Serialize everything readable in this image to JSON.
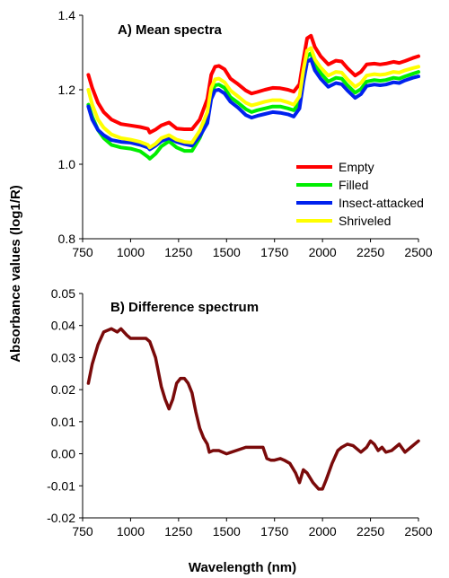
{
  "shared": {
    "ylabel": "Absorbance values (log1/R)",
    "xlabel": "Wavelength (nm)"
  },
  "chart_data": [
    {
      "type": "line",
      "title": "A) Mean spectra",
      "xlim": [
        750,
        2500
      ],
      "ylim": [
        0.8,
        1.4
      ],
      "x_ticks": [
        "750",
        "1000",
        "1250",
        "1500",
        "1750",
        "2000",
        "2250",
        "2500"
      ],
      "y_ticks": [
        "0.8",
        "1.0",
        "1.2",
        "1.4"
      ],
      "legend_position": "bottom-right",
      "series": [
        {
          "name": "Empty",
          "color": "#ff0000",
          "x": [
            780,
            800,
            830,
            860,
            900,
            950,
            1000,
            1050,
            1090,
            1100,
            1130,
            1160,
            1200,
            1240,
            1280,
            1320,
            1360,
            1400,
            1420,
            1440,
            1460,
            1490,
            1520,
            1560,
            1600,
            1630,
            1660,
            1700,
            1740,
            1780,
            1820,
            1850,
            1880,
            1900,
            1920,
            1940,
            1960,
            1990,
            2030,
            2070,
            2100,
            2130,
            2170,
            2200,
            2230,
            2270,
            2300,
            2330,
            2370,
            2400,
            2430,
            2470,
            2500
          ],
          "y": [
            1.24,
            1.205,
            1.165,
            1.14,
            1.12,
            1.108,
            1.104,
            1.1,
            1.095,
            1.085,
            1.093,
            1.104,
            1.112,
            1.096,
            1.094,
            1.094,
            1.12,
            1.175,
            1.24,
            1.262,
            1.264,
            1.255,
            1.23,
            1.215,
            1.198,
            1.19,
            1.194,
            1.2,
            1.205,
            1.204,
            1.2,
            1.195,
            1.215,
            1.28,
            1.338,
            1.345,
            1.315,
            1.29,
            1.268,
            1.278,
            1.276,
            1.258,
            1.238,
            1.248,
            1.268,
            1.27,
            1.268,
            1.27,
            1.275,
            1.272,
            1.277,
            1.285,
            1.29
          ]
        },
        {
          "name": "Filled",
          "color": "#00ee00",
          "x": [
            780,
            800,
            830,
            860,
            900,
            950,
            1000,
            1050,
            1090,
            1100,
            1130,
            1160,
            1200,
            1240,
            1280,
            1320,
            1360,
            1400,
            1420,
            1440,
            1460,
            1490,
            1520,
            1560,
            1600,
            1630,
            1660,
            1700,
            1740,
            1780,
            1820,
            1850,
            1880,
            1900,
            1920,
            1940,
            1960,
            1990,
            2030,
            2070,
            2100,
            2130,
            2170,
            2200,
            2230,
            2270,
            2300,
            2330,
            2370,
            2400,
            2430,
            2470,
            2500
          ],
          "y": [
            1.16,
            1.128,
            1.092,
            1.07,
            1.052,
            1.045,
            1.042,
            1.035,
            1.02,
            1.015,
            1.028,
            1.048,
            1.062,
            1.045,
            1.036,
            1.036,
            1.07,
            1.12,
            1.19,
            1.212,
            1.214,
            1.205,
            1.18,
            1.165,
            1.148,
            1.14,
            1.145,
            1.15,
            1.155,
            1.155,
            1.15,
            1.145,
            1.165,
            1.235,
            1.29,
            1.298,
            1.268,
            1.245,
            1.222,
            1.232,
            1.23,
            1.212,
            1.192,
            1.202,
            1.222,
            1.226,
            1.224,
            1.226,
            1.232,
            1.23,
            1.236,
            1.243,
            1.248
          ]
        },
        {
          "name": "Insect-attacked",
          "color": "#0022ee",
          "x": [
            780,
            800,
            830,
            860,
            900,
            950,
            1000,
            1050,
            1090,
            1100,
            1130,
            1160,
            1200,
            1240,
            1280,
            1320,
            1360,
            1400,
            1420,
            1440,
            1460,
            1490,
            1520,
            1560,
            1600,
            1630,
            1660,
            1700,
            1740,
            1780,
            1820,
            1850,
            1880,
            1900,
            1920,
            1940,
            1960,
            1990,
            2030,
            2070,
            2100,
            2130,
            2170,
            2200,
            2230,
            2270,
            2300,
            2330,
            2370,
            2400,
            2430,
            2470,
            2500
          ],
          "y": [
            1.155,
            1.12,
            1.092,
            1.078,
            1.065,
            1.06,
            1.058,
            1.052,
            1.045,
            1.04,
            1.05,
            1.062,
            1.07,
            1.06,
            1.054,
            1.05,
            1.075,
            1.11,
            1.175,
            1.198,
            1.2,
            1.19,
            1.168,
            1.152,
            1.132,
            1.125,
            1.13,
            1.135,
            1.14,
            1.138,
            1.134,
            1.128,
            1.15,
            1.22,
            1.275,
            1.282,
            1.252,
            1.23,
            1.208,
            1.218,
            1.215,
            1.198,
            1.178,
            1.188,
            1.21,
            1.214,
            1.212,
            1.214,
            1.22,
            1.218,
            1.225,
            1.232,
            1.236
          ]
        },
        {
          "name": "Shriveled",
          "color": "#ffff00",
          "x": [
            780,
            800,
            830,
            860,
            900,
            950,
            1000,
            1050,
            1090,
            1100,
            1130,
            1160,
            1200,
            1240,
            1280,
            1320,
            1360,
            1400,
            1420,
            1440,
            1460,
            1490,
            1520,
            1560,
            1600,
            1630,
            1660,
            1700,
            1740,
            1780,
            1820,
            1850,
            1880,
            1900,
            1920,
            1940,
            1960,
            1990,
            2030,
            2070,
            2100,
            2130,
            2170,
            2200,
            2230,
            2270,
            2300,
            2330,
            2370,
            2400,
            2430,
            2470,
            2500
          ],
          "y": [
            1.2,
            1.16,
            1.12,
            1.098,
            1.08,
            1.07,
            1.066,
            1.06,
            1.052,
            1.045,
            1.055,
            1.07,
            1.078,
            1.066,
            1.06,
            1.058,
            1.09,
            1.14,
            1.205,
            1.228,
            1.23,
            1.22,
            1.198,
            1.182,
            1.165,
            1.158,
            1.162,
            1.168,
            1.172,
            1.172,
            1.166,
            1.16,
            1.182,
            1.252,
            1.305,
            1.312,
            1.282,
            1.26,
            1.238,
            1.248,
            1.246,
            1.228,
            1.208,
            1.218,
            1.238,
            1.242,
            1.24,
            1.242,
            1.248,
            1.246,
            1.252,
            1.258,
            1.262
          ]
        }
      ]
    },
    {
      "type": "line",
      "title": "B) Difference spectrum",
      "xlim": [
        750,
        2500
      ],
      "ylim": [
        -0.02,
        0.05
      ],
      "x_ticks": [
        "750",
        "1000",
        "1250",
        "1500",
        "1750",
        "2000",
        "2250",
        "2500"
      ],
      "y_ticks": [
        "-0.02",
        "-0.01",
        "0.00",
        "0.01",
        "0.02",
        "0.03",
        "0.04",
        "0.05"
      ],
      "series": [
        {
          "color": "#7a0a0a",
          "x": [
            780,
            800,
            830,
            860,
            900,
            930,
            950,
            980,
            1000,
            1020,
            1050,
            1080,
            1100,
            1130,
            1160,
            1180,
            1200,
            1220,
            1240,
            1260,
            1280,
            1300,
            1320,
            1340,
            1360,
            1380,
            1400,
            1410,
            1430,
            1460,
            1500,
            1550,
            1600,
            1650,
            1690,
            1710,
            1730,
            1750,
            1780,
            1800,
            1830,
            1860,
            1880,
            1890,
            1900,
            1920,
            1950,
            1980,
            2000,
            2020,
            2050,
            2080,
            2100,
            2130,
            2160,
            2200,
            2230,
            2250,
            2270,
            2290,
            2310,
            2330,
            2360,
            2400,
            2430,
            2460,
            2500
          ],
          "y": [
            0.022,
            0.028,
            0.034,
            0.038,
            0.039,
            0.038,
            0.039,
            0.037,
            0.036,
            0.036,
            0.036,
            0.036,
            0.035,
            0.03,
            0.021,
            0.017,
            0.014,
            0.017,
            0.022,
            0.0235,
            0.0235,
            0.022,
            0.019,
            0.013,
            0.008,
            0.005,
            0.003,
            0.0005,
            0.001,
            0.001,
            0.0,
            0.001,
            0.002,
            0.002,
            0.002,
            -0.0015,
            -0.002,
            -0.002,
            -0.0015,
            -0.002,
            -0.003,
            -0.006,
            -0.009,
            -0.007,
            -0.005,
            -0.006,
            -0.009,
            -0.011,
            -0.011,
            -0.008,
            -0.003,
            0.001,
            0.002,
            0.003,
            0.0025,
            0.0005,
            0.002,
            0.004,
            0.003,
            0.001,
            0.002,
            0.0005,
            0.001,
            0.003,
            0.0005,
            0.002,
            0.004
          ]
        }
      ]
    }
  ]
}
